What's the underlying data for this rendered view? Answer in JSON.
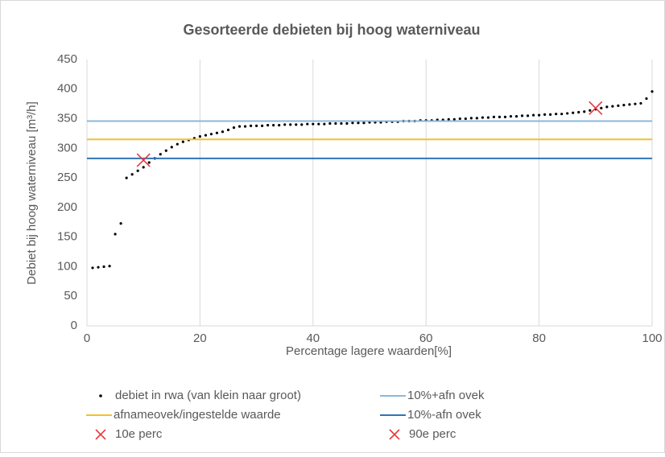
{
  "chart_data": {
    "type": "scatter",
    "title": "Gesorteerde debieten bij hoog waterniveau",
    "x_label": "Percentage lagere waarden[%]",
    "y_label": "Debiet bij hoog waterniveau [m³/h]",
    "xlim": [
      0,
      100
    ],
    "ylim": [
      0,
      450
    ],
    "xticks": [
      0,
      20,
      40,
      60,
      80,
      100
    ],
    "yticks": [
      0,
      50,
      100,
      150,
      200,
      250,
      300,
      350,
      400,
      450
    ],
    "grid": "x",
    "legend": "bottom",
    "series": [
      {
        "name": "debiet in rwa (van klein naar groot)",
        "kind": "dots",
        "color": "#000000",
        "x": [
          1,
          2,
          3,
          4,
          5,
          6,
          7,
          8,
          9,
          10,
          11,
          12,
          13,
          14,
          15,
          16,
          17,
          18,
          19,
          20,
          21,
          22,
          23,
          24,
          25,
          26,
          27,
          28,
          29,
          30,
          31,
          32,
          33,
          34,
          35,
          36,
          37,
          38,
          39,
          40,
          41,
          42,
          43,
          44,
          45,
          46,
          47,
          48,
          49,
          50,
          51,
          52,
          53,
          54,
          55,
          56,
          57,
          58,
          59,
          60,
          61,
          62,
          63,
          64,
          65,
          66,
          67,
          68,
          69,
          70,
          71,
          72,
          73,
          74,
          75,
          76,
          77,
          78,
          79,
          80,
          81,
          82,
          83,
          84,
          85,
          86,
          87,
          88,
          89,
          90,
          91,
          92,
          93,
          94,
          95,
          96,
          97,
          98,
          99,
          100
        ],
        "values": [
          98,
          99,
          100,
          101,
          155,
          173,
          250,
          256,
          262,
          268,
          276,
          283,
          290,
          296,
          302,
          307,
          311,
          314,
          317,
          320,
          322,
          324,
          326,
          328,
          331,
          335,
          337,
          337,
          338,
          338,
          338,
          339,
          339,
          339,
          340,
          340,
          340,
          340,
          341,
          341,
          341,
          341,
          342,
          342,
          342,
          342,
          343,
          343,
          343,
          344,
          344,
          344,
          345,
          345,
          345,
          346,
          346,
          346,
          347,
          347,
          347,
          348,
          348,
          349,
          349,
          350,
          350,
          351,
          351,
          352,
          352,
          353,
          353,
          353,
          354,
          354,
          355,
          355,
          356,
          356,
          357,
          357,
          358,
          358,
          359,
          360,
          361,
          362,
          364,
          366,
          368,
          370,
          371,
          372,
          373,
          374,
          375,
          376,
          384,
          396
        ]
      },
      {
        "name": "10%+afn ovek",
        "kind": "hline",
        "color": "#8ab8dc",
        "values": [
          346
        ]
      },
      {
        "name": "afnameovek/ingestelde waarde",
        "kind": "hline",
        "color": "#f2c12e",
        "values": [
          315
        ]
      },
      {
        "name": "10%-afn ovek",
        "kind": "hline",
        "color": "#2e75b6",
        "values": [
          283
        ]
      },
      {
        "name": "10e perc",
        "kind": "cross",
        "color": "#e8383d",
        "x": [
          10
        ],
        "values": [
          280
        ]
      },
      {
        "name": "90e perc",
        "kind": "cross",
        "color": "#e8383d",
        "x": [
          90
        ],
        "values": [
          368
        ]
      }
    ]
  }
}
